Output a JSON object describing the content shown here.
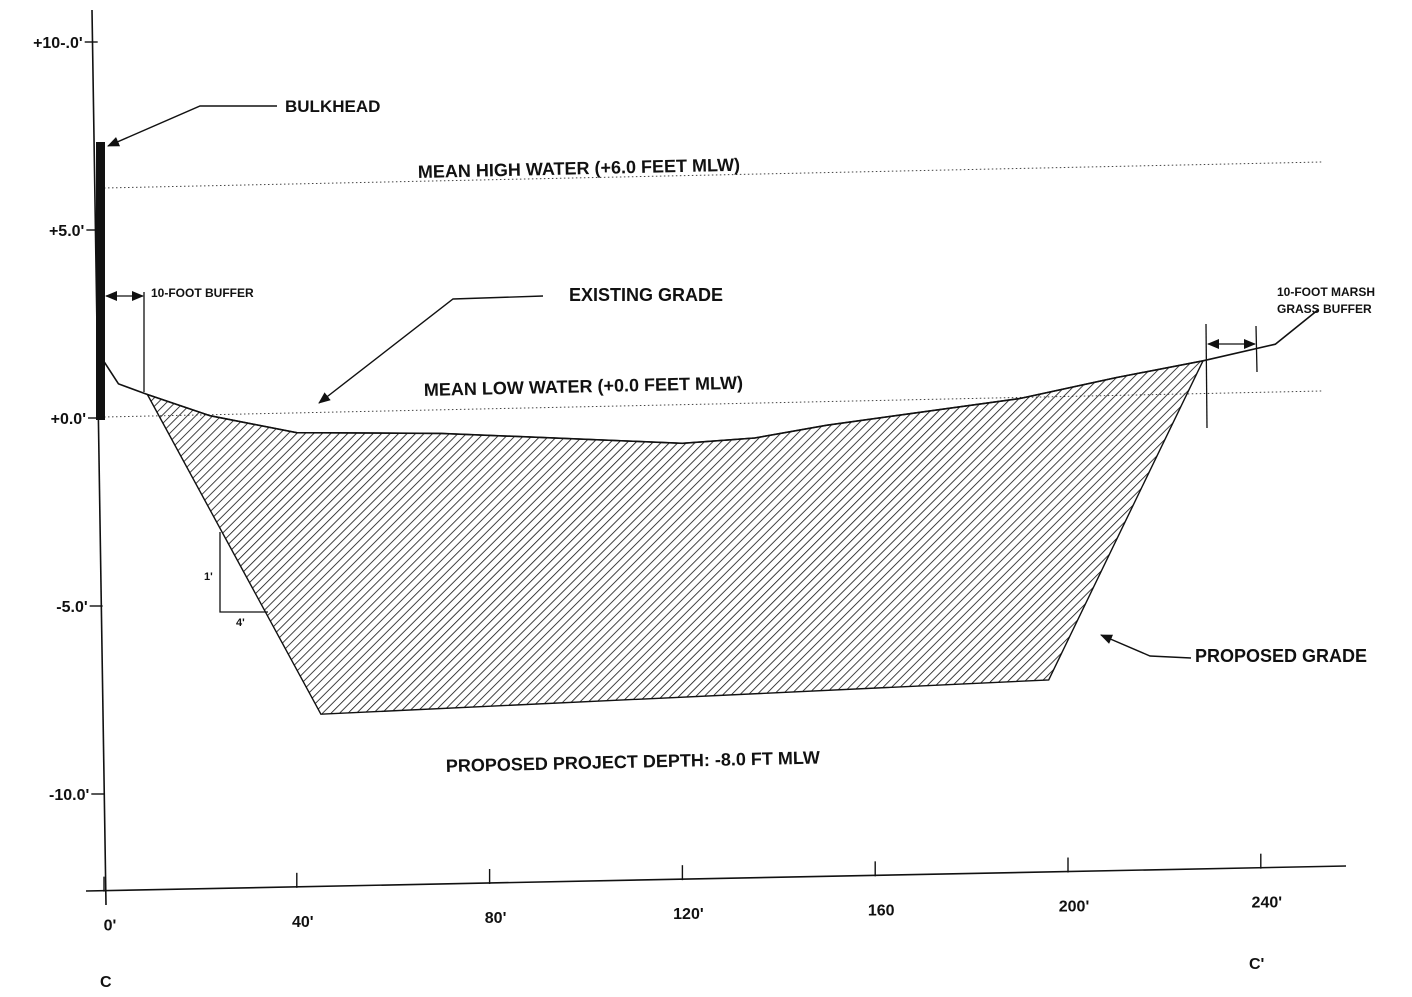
{
  "chart_data": {
    "type": "cross-section",
    "y_axis": {
      "tick_labels": [
        "+10-.0'",
        "+5.0'",
        "+0.0'",
        "-5.0'",
        "-10.0'"
      ],
      "tick_values": [
        10,
        5,
        0,
        -5,
        -10
      ]
    },
    "x_axis": {
      "tick_labels": [
        "0'",
        "40'",
        "80'",
        "120'",
        "160",
        "200'",
        "240'"
      ],
      "tick_values": [
        0,
        40,
        80,
        120,
        160,
        200,
        240
      ]
    },
    "section_labels": {
      "start": "C",
      "end": "C'"
    },
    "reference_lines": [
      {
        "label": "MEAN HIGH WATER (+6.0 FEET MLW)",
        "elevation_ft": 6.0
      },
      {
        "label": "MEAN LOW WATER (+0.0 FEET MLW)",
        "elevation_ft": 0.0
      }
    ],
    "existing_grade": [
      [
        0,
        1.5
      ],
      [
        3,
        0.9
      ],
      [
        9,
        0.6
      ],
      [
        22,
        0.0
      ],
      [
        40,
        -0.5
      ],
      [
        70,
        -0.6
      ],
      [
        95,
        -0.8
      ],
      [
        120,
        -1.0
      ],
      [
        135,
        -0.9
      ],
      [
        150,
        -0.6
      ],
      [
        190,
        0.0
      ],
      [
        210,
        0.5
      ],
      [
        228,
        0.9
      ],
      [
        243,
        1.3
      ],
      [
        252,
        2.2
      ]
    ],
    "proposed_grade": [
      [
        9,
        0.6
      ],
      [
        45,
        -8.0
      ],
      [
        196,
        -7.5
      ],
      [
        228,
        0.9
      ]
    ],
    "bulkhead": {
      "x": 0,
      "top_elevation_ft": 7.3,
      "bottom_elevation_ft": 0.0
    },
    "side_slope": {
      "rise": "1'",
      "run": "4'"
    },
    "annotations": {
      "bulkhead": "BULKHEAD",
      "existing_grade": "EXISTING GRADE",
      "proposed_grade": "PROPOSED GRADE",
      "buffer_left": "10-FOOT BUFFER",
      "buffer_right_line1": "10-FOOT MARSH",
      "buffer_right_line2": "GRASS BUFFER",
      "project_depth": "PROPOSED PROJECT DEPTH: -8.0 FT MLW"
    }
  }
}
